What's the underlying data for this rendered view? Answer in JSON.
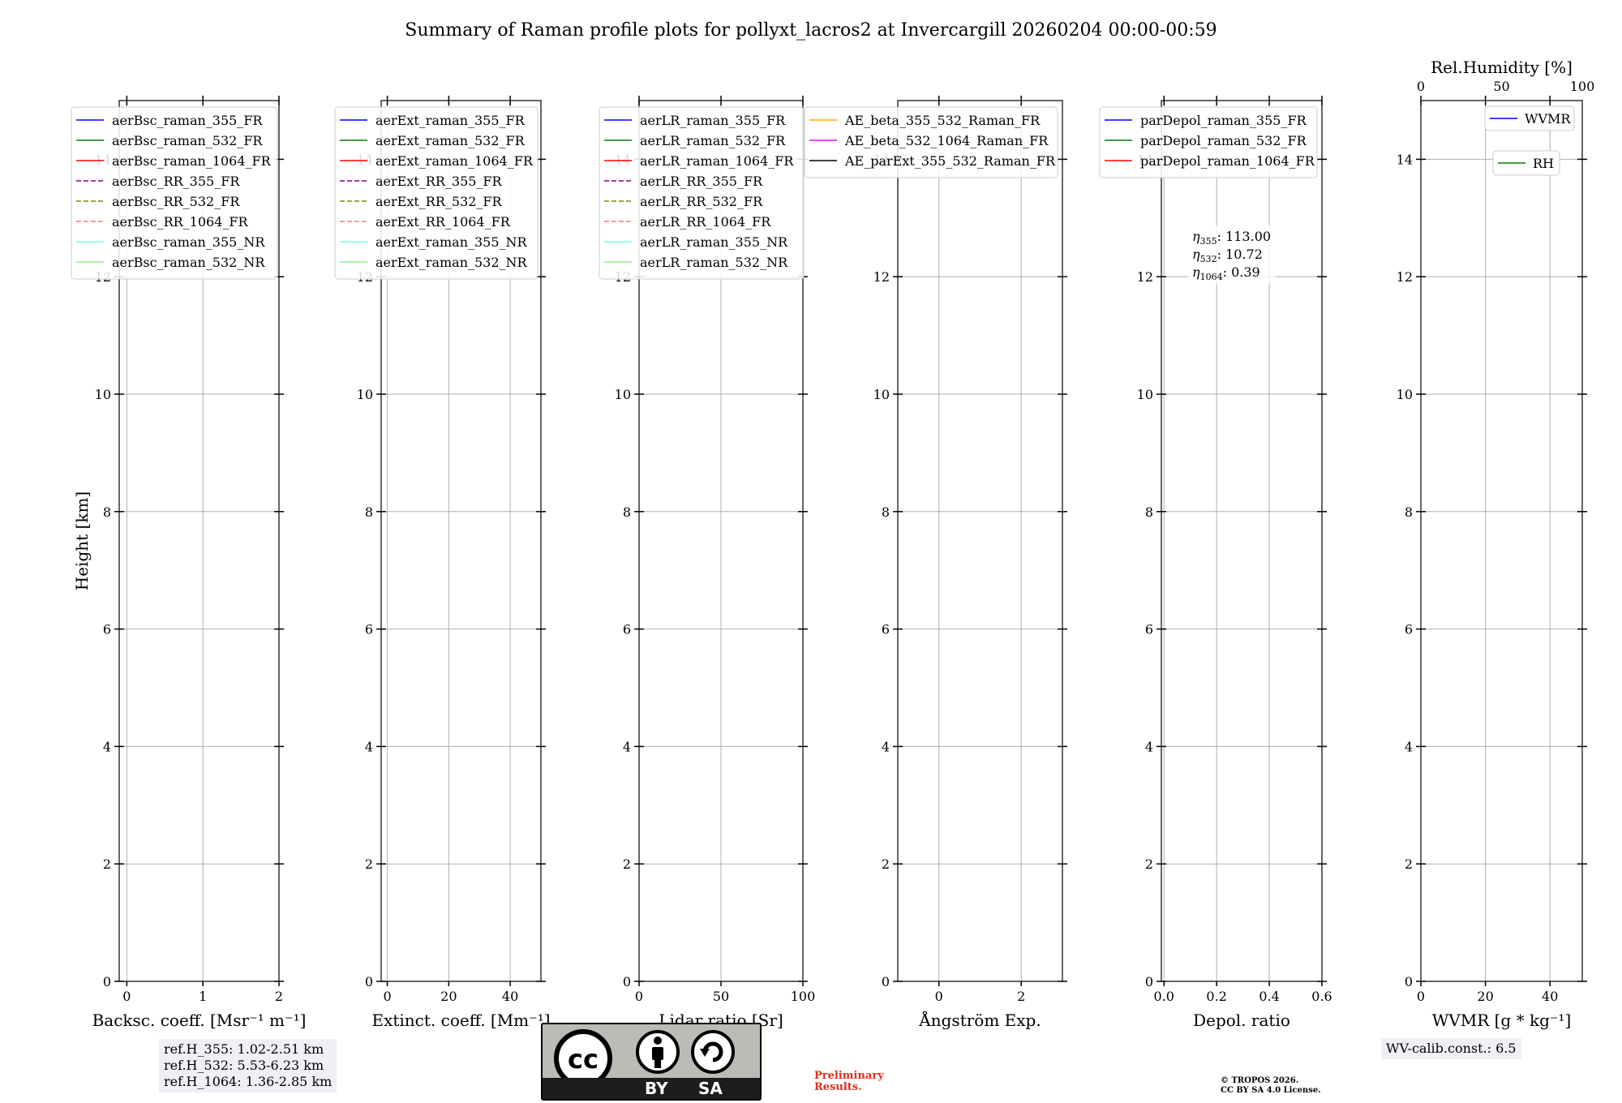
{
  "title": "Summary of Raman profile plots for pollyxt_lacros2 at Invercargill 20260204 00:00-00:59",
  "chart_data": [
    {
      "type": "line",
      "panel": "backscatter",
      "xlabel": "Backsc. coeff. [Msr⁻¹ m⁻¹]",
      "ylabel": "Height [km]",
      "xlim": [
        -0.1,
        2
      ],
      "ylim": [
        0,
        15
      ],
      "xticks": [
        0,
        1,
        2
      ],
      "yticks": [
        0,
        2,
        4,
        6,
        8,
        10,
        12,
        14
      ],
      "legend": "top-right",
      "series": [
        {
          "name": "aerBsc_raman_355_FR",
          "color": "#0000ff",
          "style": "solid"
        },
        {
          "name": "aerBsc_raman_532_FR",
          "color": "#008000",
          "style": "solid"
        },
        {
          "name": "aerBsc_raman_1064_FR",
          "color": "#ff0000",
          "style": "solid"
        },
        {
          "name": "aerBsc_RR_355_FR",
          "color": "#800080",
          "style": "dashed"
        },
        {
          "name": "aerBsc_RR_532_FR",
          "color": "#808000",
          "style": "dashed"
        },
        {
          "name": "aerBsc_RR_1064_FR",
          "color": "#fa8072",
          "style": "dashed"
        },
        {
          "name": "aerBsc_raman_355_NR",
          "color": "#7fffd4",
          "style": "solid"
        },
        {
          "name": "aerBsc_raman_532_NR",
          "color": "#90ee90",
          "style": "solid"
        }
      ]
    },
    {
      "type": "line",
      "panel": "extinction",
      "xlabel": "Extinct. coeff. [Mm⁻¹]",
      "xlim": [
        -2,
        50
      ],
      "ylim": [
        0,
        15
      ],
      "xticks": [
        0,
        20,
        40
      ],
      "yticks": [
        0,
        2,
        4,
        6,
        8,
        10,
        12,
        14
      ],
      "legend": "top-right",
      "series": [
        {
          "name": "aerExt_raman_355_FR",
          "color": "#0000ff",
          "style": "solid"
        },
        {
          "name": "aerExt_raman_532_FR",
          "color": "#008000",
          "style": "solid"
        },
        {
          "name": "aerExt_raman_1064_FR",
          "color": "#ff0000",
          "style": "solid"
        },
        {
          "name": "aerExt_RR_355_FR",
          "color": "#800080",
          "style": "dashed"
        },
        {
          "name": "aerExt_RR_532_FR",
          "color": "#808000",
          "style": "dashed"
        },
        {
          "name": "aerExt_RR_1064_FR",
          "color": "#fa8072",
          "style": "dashed"
        },
        {
          "name": "aerExt_raman_355_NR",
          "color": "#7fffd4",
          "style": "solid"
        },
        {
          "name": "aerExt_raman_532_NR",
          "color": "#90ee90",
          "style": "solid"
        }
      ]
    },
    {
      "type": "line",
      "panel": "lidar_ratio",
      "xlabel": "Lidar ratio [Sr]",
      "xlim": [
        0,
        100
      ],
      "ylim": [
        0,
        15
      ],
      "xticks": [
        0,
        50,
        100
      ],
      "yticks": [
        0,
        2,
        4,
        6,
        8,
        10,
        12,
        14
      ],
      "legend": "top-right",
      "series": [
        {
          "name": "aerLR_raman_355_FR",
          "color": "#0000ff",
          "style": "solid"
        },
        {
          "name": "aerLR_raman_532_FR",
          "color": "#008000",
          "style": "solid"
        },
        {
          "name": "aerLR_raman_1064_FR",
          "color": "#ff0000",
          "style": "solid"
        },
        {
          "name": "aerLR_RR_355_FR",
          "color": "#800080",
          "style": "dashed"
        },
        {
          "name": "aerLR_RR_532_FR",
          "color": "#808000",
          "style": "dashed"
        },
        {
          "name": "aerLR_RR_1064_FR",
          "color": "#fa8072",
          "style": "dashed"
        },
        {
          "name": "aerLR_raman_355_NR",
          "color": "#7fffd4",
          "style": "solid"
        },
        {
          "name": "aerLR_raman_532_NR",
          "color": "#90ee90",
          "style": "solid"
        }
      ]
    },
    {
      "type": "line",
      "panel": "angstrom",
      "xlabel": "Ångström Exp.",
      "xlim": [
        -1,
        3
      ],
      "ylim": [
        0,
        15
      ],
      "xticks": [
        0,
        2
      ],
      "yticks": [
        0,
        2,
        4,
        6,
        8,
        10,
        12,
        14
      ],
      "legend": "top-left",
      "series": [
        {
          "name": "AE_beta_355_532_Raman_FR",
          "color": "#ffa500",
          "style": "solid"
        },
        {
          "name": "AE_beta_532_1064_Raman_FR",
          "color": "#ff00ff",
          "style": "solid"
        },
        {
          "name": "AE_parExt_355_532_Raman_FR",
          "color": "#000000",
          "style": "solid"
        }
      ]
    },
    {
      "type": "line",
      "panel": "depolarization",
      "xlabel": "Depol. ratio",
      "xlim": [
        -0.01,
        0.6
      ],
      "ylim": [
        0,
        15
      ],
      "xticks": [
        0.0,
        0.2,
        0.4,
        0.6
      ],
      "yticks": [
        0,
        2,
        4,
        6,
        8,
        10,
        12,
        14
      ],
      "legend": "top-left",
      "series": [
        {
          "name": "parDepol_raman_355_FR",
          "color": "#0000ff",
          "style": "solid"
        },
        {
          "name": "parDepol_raman_532_FR",
          "color": "#008000",
          "style": "solid"
        },
        {
          "name": "parDepol_raman_1064_FR",
          "color": "#ff0000",
          "style": "solid"
        }
      ],
      "eta": [
        {
          "label": "η",
          "sub": "355",
          "value": ": 113.00"
        },
        {
          "label": "η",
          "sub": "532",
          "value": ": 10.72"
        },
        {
          "label": "η",
          "sub": "1064",
          "value": ": 0.39"
        }
      ]
    },
    {
      "type": "line",
      "panel": "water_vapor",
      "xlabel": "WVMR [g * kg⁻¹]",
      "x2label": "Rel.Humidity [%]",
      "xlim": [
        0,
        50
      ],
      "x2lim": [
        0,
        100
      ],
      "ylim": [
        0,
        15
      ],
      "xticks": [
        0,
        20,
        40
      ],
      "x2ticks": [
        0,
        50,
        100
      ],
      "yticks": [
        0,
        2,
        4,
        6,
        8,
        10,
        12,
        14
      ],
      "series": [
        {
          "name": "WVMR",
          "color": "#0000ff",
          "style": "solid"
        },
        {
          "name": "RH",
          "color": "#008000",
          "style": "solid"
        }
      ]
    }
  ],
  "ref_heights": [
    "ref.H_355: 1.02-2.51 km",
    "ref.H_532: 5.53-6.23 km",
    "ref.H_1064: 1.36-2.85 km"
  ],
  "wv_calib": "WV-calib.const.: 6.5",
  "license_badge": {
    "by": "BY",
    "sa": "SA",
    "cc": "cc"
  },
  "preliminary": [
    "Preliminary",
    "Results."
  ],
  "copyright": [
    "© TROPOS 2026.",
    "CC BY SA 4.0 License."
  ],
  "colors": {
    "grid": "#b0b0b0",
    "legend_border": "#cccccc"
  }
}
